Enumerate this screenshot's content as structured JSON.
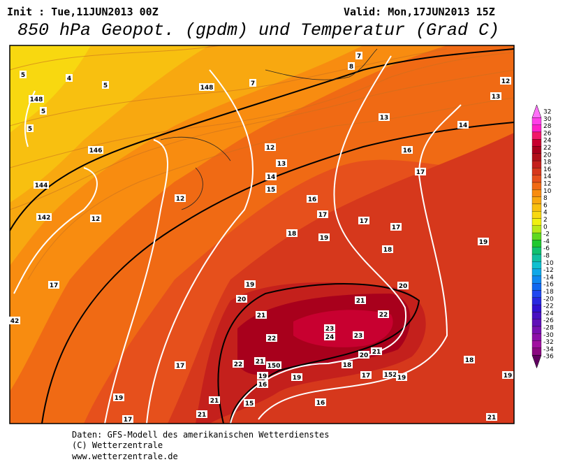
{
  "header": {
    "init": "Init : Tue,11JUN2013 00Z",
    "valid": "Valid: Mon,17JUN2013 15Z",
    "title": "850 hPa Geopot. (gpdm) und Temperatur (Grad C)"
  },
  "colorbar": {
    "levels": [
      32,
      30,
      28,
      26,
      24,
      22,
      20,
      18,
      16,
      14,
      12,
      10,
      8,
      6,
      4,
      2,
      0,
      -2,
      -4,
      -6,
      -8,
      -10,
      -12,
      -14,
      -16,
      -18,
      -20,
      -22,
      -24,
      -26,
      -28,
      -30,
      -32,
      -34,
      -36
    ],
    "colors": [
      "#ff70f8",
      "#ff40e8",
      "#ff20c8",
      "#f01868",
      "#c80030",
      "#a8001c",
      "#b0101a",
      "#c4201c",
      "#d6381c",
      "#e6501c",
      "#f06a14",
      "#f88c10",
      "#f8a810",
      "#f8c010",
      "#f8d810",
      "#f0f010",
      "#b8e818",
      "#60d820",
      "#20c830",
      "#10c070",
      "#10c0a0",
      "#10c0d0",
      "#10a8e8",
      "#1088f0",
      "#1068f0",
      "#2048f0",
      "#2828e0",
      "#3010d0",
      "#4810c0",
      "#6010b8",
      "#7810b0",
      "#8c10a8",
      "#a010a0",
      "#8a0880",
      "#600060"
    ]
  },
  "map": {
    "labels": [
      5,
      4,
      5,
      148,
      5,
      5,
      146,
      144,
      142,
      12,
      12,
      148,
      7,
      7,
      8,
      12,
      13,
      14,
      15,
      13,
      12,
      13,
      14,
      16,
      17,
      16,
      17,
      17,
      17,
      18,
      19,
      18,
      19,
      17,
      19,
      20,
      20,
      21,
      21,
      22,
      23,
      24,
      23,
      22,
      21,
      20,
      22,
      21,
      150,
      18,
      19,
      16,
      19,
      17,
      152,
      19,
      17,
      18,
      19,
      42,
      19,
      21,
      15,
      16,
      21,
      17,
      21
    ]
  },
  "footer": {
    "lines": [
      "Daten: GFS-Modell des amerikanischen Wetterdienstes",
      "(C) Wetterzentrale",
      "www.wetterzentrale.de"
    ]
  }
}
